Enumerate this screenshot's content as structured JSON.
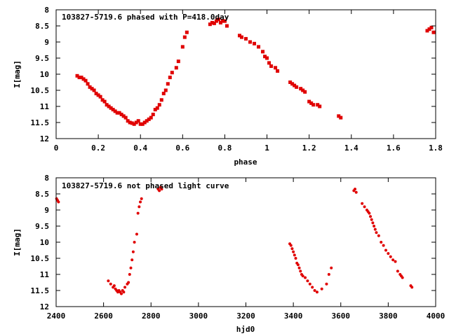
{
  "chart_data": [
    {
      "type": "scatter",
      "title": "103827-5719.6 phased with P=418.0day",
      "xlabel": "phase",
      "ylabel": "I[mag]",
      "xlim": [
        0,
        1.8
      ],
      "ylim": [
        8,
        12
      ],
      "y_inverted": true,
      "x_ticks": [
        0,
        0.2,
        0.4,
        0.6,
        0.8,
        1,
        1.2,
        1.4,
        1.6,
        1.8
      ],
      "x_tick_labels": [
        "0",
        "0.2",
        "0.4",
        "0.6",
        "0.8",
        "1",
        "1.2",
        "1.4",
        "1.6",
        "1.8"
      ],
      "y_ticks": [
        8,
        8.5,
        9,
        9.5,
        10,
        10.5,
        11,
        11.5,
        12
      ],
      "y_tick_labels": [
        "8",
        "8.5",
        "9",
        "9.5",
        "10",
        "10.5",
        "11",
        "11.5",
        "12"
      ],
      "color": "#e00000",
      "series": [
        {
          "name": "I",
          "x": [
            0.1,
            0.11,
            0.12,
            0.13,
            0.14,
            0.15,
            0.16,
            0.17,
            0.18,
            0.19,
            0.2,
            0.21,
            0.22,
            0.23,
            0.24,
            0.25,
            0.26,
            0.27,
            0.28,
            0.29,
            0.3,
            0.31,
            0.32,
            0.33,
            0.34,
            0.35,
            0.36,
            0.37,
            0.38,
            0.39,
            0.4,
            0.41,
            0.42,
            0.43,
            0.44,
            0.45,
            0.46,
            0.47,
            0.48,
            0.49,
            0.5,
            0.51,
            0.52,
            0.53,
            0.54,
            0.55,
            0.57,
            0.58,
            0.6,
            0.61,
            0.62,
            0.73,
            0.74,
            0.75,
            0.76,
            0.77,
            0.78,
            0.79,
            0.8,
            0.81,
            0.87,
            0.88,
            0.9,
            0.92,
            0.94,
            0.96,
            0.98,
            0.99,
            1.0,
            1.01,
            1.02,
            1.04,
            1.05,
            1.11,
            1.12,
            1.13,
            1.14,
            1.16,
            1.17,
            1.18,
            1.2,
            1.21,
            1.22,
            1.24,
            1.25,
            1.34,
            1.35,
            1.76,
            1.77,
            1.78,
            1.79
          ],
          "y": [
            10.05,
            10.1,
            10.1,
            10.15,
            10.2,
            10.3,
            10.4,
            10.45,
            10.5,
            10.6,
            10.65,
            10.7,
            10.8,
            10.85,
            10.95,
            11.0,
            11.05,
            11.1,
            11.15,
            11.2,
            11.2,
            11.25,
            11.3,
            11.35,
            11.45,
            11.5,
            11.52,
            11.55,
            11.5,
            11.45,
            11.55,
            11.55,
            11.5,
            11.45,
            11.4,
            11.35,
            11.25,
            11.1,
            11.05,
            10.95,
            10.8,
            10.6,
            10.5,
            10.3,
            10.1,
            9.95,
            9.8,
            9.6,
            9.15,
            8.85,
            8.7,
            8.45,
            8.4,
            8.42,
            8.35,
            8.3,
            8.4,
            8.35,
            8.35,
            8.5,
            8.8,
            8.85,
            8.9,
            9.0,
            9.05,
            9.15,
            9.3,
            9.45,
            9.5,
            9.65,
            9.75,
            9.8,
            9.9,
            10.25,
            10.3,
            10.35,
            10.4,
            10.45,
            10.5,
            10.55,
            10.85,
            10.9,
            10.95,
            10.95,
            11.0,
            11.3,
            11.35,
            8.65,
            8.6,
            8.55,
            8.7
          ]
        }
      ]
    },
    {
      "type": "scatter",
      "title": "103827-5719.6 not phased light curve",
      "xlabel": "hjd0",
      "ylabel": "I[mag]",
      "xlim": [
        2400,
        4000
      ],
      "ylim": [
        8,
        12
      ],
      "y_inverted": true,
      "x_ticks": [
        2400,
        2600,
        2800,
        3000,
        3200,
        3400,
        3600,
        3800,
        4000
      ],
      "x_tick_labels": [
        "2400",
        "2600",
        "2800",
        "3000",
        "3200",
        "3400",
        "3600",
        "3800",
        "4000"
      ],
      "y_ticks": [
        8,
        8.5,
        9,
        9.5,
        10,
        10.5,
        11,
        11.5,
        12
      ],
      "y_tick_labels": [
        "8",
        "8.5",
        "9",
        "9.5",
        "10",
        "10.5",
        "11",
        "11.5",
        "12"
      ],
      "color": "#e00000",
      "series": [
        {
          "name": "I",
          "x": [
            2402,
            2406,
            2410,
            2620,
            2630,
            2640,
            2645,
            2650,
            2655,
            2660,
            2665,
            2670,
            2675,
            2680,
            2685,
            2690,
            2700,
            2705,
            2710,
            2715,
            2720,
            2725,
            2730,
            2740,
            2745,
            2750,
            2755,
            2760,
            2830,
            2835,
            2840,
            2845,
            3385,
            3390,
            3395,
            3400,
            3405,
            3410,
            3415,
            3420,
            3425,
            3430,
            3435,
            3440,
            3450,
            3460,
            3470,
            3480,
            3490,
            3500,
            3520,
            3540,
            3550,
            3560,
            3655,
            3660,
            3665,
            3690,
            3700,
            3710,
            3715,
            3720,
            3725,
            3730,
            3735,
            3740,
            3745,
            3750,
            3760,
            3770,
            3780,
            3790,
            3800,
            3810,
            3820,
            3830,
            3840,
            3850,
            3855,
            3860,
            3895,
            3900
          ],
          "y": [
            8.65,
            8.7,
            8.75,
            11.2,
            11.3,
            11.4,
            11.35,
            11.45,
            11.5,
            11.55,
            11.5,
            11.55,
            11.6,
            11.5,
            11.55,
            11.4,
            11.3,
            11.25,
            11.0,
            10.8,
            10.55,
            10.3,
            10.0,
            9.75,
            9.1,
            8.9,
            8.75,
            8.65,
            8.35,
            8.4,
            8.3,
            8.35,
            10.05,
            10.1,
            10.2,
            10.3,
            10.4,
            10.5,
            10.65,
            10.7,
            10.8,
            10.9,
            11.0,
            11.05,
            11.1,
            11.2,
            11.3,
            11.4,
            11.5,
            11.55,
            11.45,
            11.3,
            11.0,
            10.8,
            8.4,
            8.35,
            8.45,
            8.8,
            8.9,
            9.0,
            9.05,
            9.1,
            9.2,
            9.3,
            9.4,
            9.5,
            9.6,
            9.7,
            9.8,
            10.0,
            10.1,
            10.25,
            10.35,
            10.45,
            10.55,
            10.6,
            10.9,
            11.0,
            11.05,
            11.1,
            11.35,
            11.4
          ]
        }
      ]
    }
  ]
}
